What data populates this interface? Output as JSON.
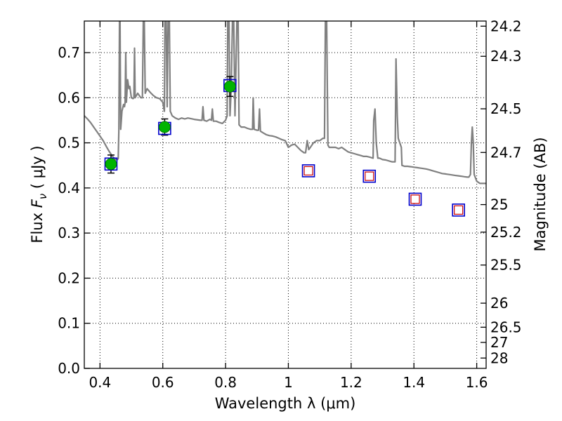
{
  "chart_data": {
    "type": "scatter",
    "xlabel": "Wavelength  λ (μm)",
    "ylabel": "Flux  F_ν  ( μJy )",
    "ylabel_parts": {
      "prefix": "Flux  ",
      "symbol": "F",
      "subscript": "ν",
      "unit": "  ( μJy )"
    },
    "y2label": "Magnitude (AB)",
    "xlim": [
      0.35,
      1.63
    ],
    "ylim": [
      0.0,
      0.77
    ],
    "grid": true,
    "x_ticks": [
      {
        "value": 0.4,
        "label": "0.4"
      },
      {
        "value": 0.6,
        "label": "0.6"
      },
      {
        "value": 0.8,
        "label": "0.8"
      },
      {
        "value": 1.0,
        "label": "1"
      },
      {
        "value": 1.2,
        "label": "1.2"
      },
      {
        "value": 1.4,
        "label": "1.4"
      },
      {
        "value": 1.6,
        "label": "1.6"
      }
    ],
    "y_ticks": [
      {
        "value": 0.0,
        "label": "0.0"
      },
      {
        "value": 0.1,
        "label": "0.1"
      },
      {
        "value": 0.2,
        "label": "0.2"
      },
      {
        "value": 0.3,
        "label": "0.3"
      },
      {
        "value": 0.4,
        "label": "0.4"
      },
      {
        "value": 0.5,
        "label": "0.5"
      },
      {
        "value": 0.6,
        "label": "0.6"
      },
      {
        "value": 0.7,
        "label": "0.7"
      }
    ],
    "y2_ticks": [
      {
        "value": 24.2,
        "label": "24.2"
      },
      {
        "value": 24.3,
        "label": "24.3"
      },
      {
        "value": 24.5,
        "label": "24.5"
      },
      {
        "value": 24.7,
        "label": "24.7"
      },
      {
        "value": 25.0,
        "label": "25"
      },
      {
        "value": 25.2,
        "label": "25.2"
      },
      {
        "value": 25.5,
        "label": "25.5"
      },
      {
        "value": 26.0,
        "label": "26"
      },
      {
        "value": 26.5,
        "label": "26.5"
      },
      {
        "value": 27.0,
        "label": "27"
      },
      {
        "value": 28.0,
        "label": "28"
      }
    ],
    "model_spectrum": {
      "color": "#808080",
      "points": [
        [
          0.35,
          0.56
        ],
        [
          0.36,
          0.553
        ],
        [
          0.37,
          0.545
        ],
        [
          0.38,
          0.535
        ],
        [
          0.39,
          0.525
        ],
        [
          0.4,
          0.515
        ],
        [
          0.41,
          0.505
        ],
        [
          0.42,
          0.492
        ],
        [
          0.43,
          0.48
        ],
        [
          0.44,
          0.47
        ],
        [
          0.45,
          0.463
        ],
        [
          0.455,
          0.463
        ],
        [
          0.458,
          0.465
        ],
        [
          0.46,
          0.53
        ],
        [
          0.462,
          0.77
        ],
        [
          0.464,
          0.77
        ],
        [
          0.466,
          0.53
        ],
        [
          0.47,
          0.57
        ],
        [
          0.475,
          0.585
        ],
        [
          0.478,
          0.58
        ],
        [
          0.48,
          0.59
        ],
        [
          0.482,
          0.7
        ],
        [
          0.484,
          0.59
        ],
        [
          0.488,
          0.64
        ],
        [
          0.492,
          0.62
        ],
        [
          0.495,
          0.625
        ],
        [
          0.5,
          0.6
        ],
        [
          0.505,
          0.598
        ],
        [
          0.508,
          0.6
        ],
        [
          0.51,
          0.71
        ],
        [
          0.512,
          0.6
        ],
        [
          0.52,
          0.61
        ],
        [
          0.53,
          0.6
        ],
        [
          0.535,
          0.6
        ],
        [
          0.538,
          0.77
        ],
        [
          0.541,
          0.77
        ],
        [
          0.544,
          0.61
        ],
        [
          0.55,
          0.62
        ],
        [
          0.56,
          0.612
        ],
        [
          0.57,
          0.605
        ],
        [
          0.58,
          0.6
        ],
        [
          0.59,
          0.598
        ],
        [
          0.6,
          0.59
        ],
        [
          0.605,
          0.57
        ],
        [
          0.607,
          0.77
        ],
        [
          0.611,
          0.77
        ],
        [
          0.614,
          0.58
        ],
        [
          0.617,
          0.77
        ],
        [
          0.621,
          0.77
        ],
        [
          0.624,
          0.57
        ],
        [
          0.63,
          0.56
        ],
        [
          0.64,
          0.555
        ],
        [
          0.65,
          0.552
        ],
        [
          0.66,
          0.555
        ],
        [
          0.67,
          0.553
        ],
        [
          0.68,
          0.555
        ],
        [
          0.7,
          0.552
        ],
        [
          0.72,
          0.55
        ],
        [
          0.725,
          0.55
        ],
        [
          0.728,
          0.58
        ],
        [
          0.731,
          0.55
        ],
        [
          0.74,
          0.548
        ],
        [
          0.75,
          0.552
        ],
        [
          0.755,
          0.55
        ],
        [
          0.758,
          0.575
        ],
        [
          0.761,
          0.548
        ],
        [
          0.77,
          0.548
        ],
        [
          0.78,
          0.545
        ],
        [
          0.79,
          0.543
        ],
        [
          0.8,
          0.55
        ],
        [
          0.805,
          0.56
        ],
        [
          0.807,
          0.77
        ],
        [
          0.811,
          0.77
        ],
        [
          0.814,
          0.56
        ],
        [
          0.818,
          0.62
        ],
        [
          0.822,
          0.77
        ],
        [
          0.826,
          0.77
        ],
        [
          0.83,
          0.56
        ],
        [
          0.836,
          0.77
        ],
        [
          0.84,
          0.77
        ],
        [
          0.843,
          0.54
        ],
        [
          0.85,
          0.535
        ],
        [
          0.86,
          0.535
        ],
        [
          0.87,
          0.532
        ],
        [
          0.88,
          0.53
        ],
        [
          0.886,
          0.53
        ],
        [
          0.888,
          0.6
        ],
        [
          0.891,
          0.53
        ],
        [
          0.9,
          0.528
        ],
        [
          0.905,
          0.528
        ],
        [
          0.908,
          0.575
        ],
        [
          0.911,
          0.526
        ],
        [
          0.92,
          0.522
        ],
        [
          0.93,
          0.518
        ],
        [
          0.94,
          0.516
        ],
        [
          0.95,
          0.515
        ],
        [
          0.96,
          0.513
        ],
        [
          0.97,
          0.51
        ],
        [
          0.98,
          0.507
        ],
        [
          0.99,
          0.505
        ],
        [
          1.0,
          0.49
        ],
        [
          1.01,
          0.495
        ],
        [
          1.02,
          0.497
        ],
        [
          1.03,
          0.49
        ],
        [
          1.04,
          0.483
        ],
        [
          1.05,
          0.478
        ],
        [
          1.055,
          0.478
        ],
        [
          1.06,
          0.505
        ],
        [
          1.065,
          0.485
        ],
        [
          1.07,
          0.49
        ],
        [
          1.08,
          0.5
        ],
        [
          1.09,
          0.505
        ],
        [
          1.1,
          0.505
        ],
        [
          1.11,
          0.51
        ],
        [
          1.115,
          0.51
        ],
        [
          1.118,
          0.77
        ],
        [
          1.122,
          0.77
        ],
        [
          1.126,
          0.495
        ],
        [
          1.13,
          0.49
        ],
        [
          1.14,
          0.49
        ],
        [
          1.15,
          0.49
        ],
        [
          1.16,
          0.487
        ],
        [
          1.17,
          0.49
        ],
        [
          1.18,
          0.485
        ],
        [
          1.19,
          0.48
        ],
        [
          1.2,
          0.478
        ],
        [
          1.21,
          0.476
        ],
        [
          1.22,
          0.474
        ],
        [
          1.23,
          0.472
        ],
        [
          1.24,
          0.47
        ],
        [
          1.25,
          0.47
        ],
        [
          1.26,
          0.468
        ],
        [
          1.27,
          0.466
        ],
        [
          1.272,
          0.55
        ],
        [
          1.276,
          0.575
        ],
        [
          1.28,
          0.5
        ],
        [
          1.285,
          0.466
        ],
        [
          1.29,
          0.466
        ],
        [
          1.3,
          0.463
        ],
        [
          1.31,
          0.462
        ],
        [
          1.32,
          0.46
        ],
        [
          1.33,
          0.458
        ],
        [
          1.34,
          0.458
        ],
        [
          1.343,
          0.686
        ],
        [
          1.347,
          0.56
        ],
        [
          1.35,
          0.51
        ],
        [
          1.355,
          0.5
        ],
        [
          1.36,
          0.49
        ],
        [
          1.362,
          0.45
        ],
        [
          1.37,
          0.448
        ],
        [
          1.38,
          0.448
        ],
        [
          1.39,
          0.447
        ],
        [
          1.4,
          0.446
        ],
        [
          1.41,
          0.445
        ],
        [
          1.42,
          0.444
        ],
        [
          1.43,
          0.443
        ],
        [
          1.44,
          0.442
        ],
        [
          1.45,
          0.44
        ],
        [
          1.46,
          0.438
        ],
        [
          1.47,
          0.436
        ],
        [
          1.48,
          0.434
        ],
        [
          1.49,
          0.432
        ],
        [
          1.5,
          0.431
        ],
        [
          1.51,
          0.43
        ],
        [
          1.52,
          0.429
        ],
        [
          1.53,
          0.428
        ],
        [
          1.54,
          0.427
        ],
        [
          1.55,
          0.426
        ],
        [
          1.56,
          0.425
        ],
        [
          1.57,
          0.424
        ],
        [
          1.575,
          0.424
        ],
        [
          1.58,
          0.43
        ],
        [
          1.583,
          0.5
        ],
        [
          1.586,
          0.535
        ],
        [
          1.589,
          0.5
        ],
        [
          1.592,
          0.43
        ],
        [
          1.6,
          0.415
        ],
        [
          1.61,
          0.41
        ],
        [
          1.63,
          0.41
        ]
      ]
    },
    "observed": {
      "marker_color": "#00b400",
      "errorbar_color": "#000000",
      "points": [
        {
          "x": 0.435,
          "y": 0.453,
          "yerr": 0.02
        },
        {
          "x": 0.606,
          "y": 0.535,
          "yerr": 0.018
        },
        {
          "x": 0.814,
          "y": 0.625,
          "yerr": 0.022
        }
      ]
    },
    "model_photometry": {
      "marker_color": "#0000cc",
      "points": [
        {
          "x": 0.435,
          "y": 0.453
        },
        {
          "x": 0.606,
          "y": 0.532
        },
        {
          "x": 0.814,
          "y": 0.627
        },
        {
          "x": 1.064,
          "y": 0.438
        },
        {
          "x": 1.258,
          "y": 0.426
        },
        {
          "x": 1.404,
          "y": 0.375
        },
        {
          "x": 1.542,
          "y": 0.351
        }
      ]
    },
    "upper_limits": {
      "marker_color": "#cc0000",
      "points": [
        {
          "x": 1.064,
          "y": 0.438
        },
        {
          "x": 1.258,
          "y": 0.426
        },
        {
          "x": 1.404,
          "y": 0.375
        },
        {
          "x": 1.542,
          "y": 0.351
        }
      ]
    }
  }
}
